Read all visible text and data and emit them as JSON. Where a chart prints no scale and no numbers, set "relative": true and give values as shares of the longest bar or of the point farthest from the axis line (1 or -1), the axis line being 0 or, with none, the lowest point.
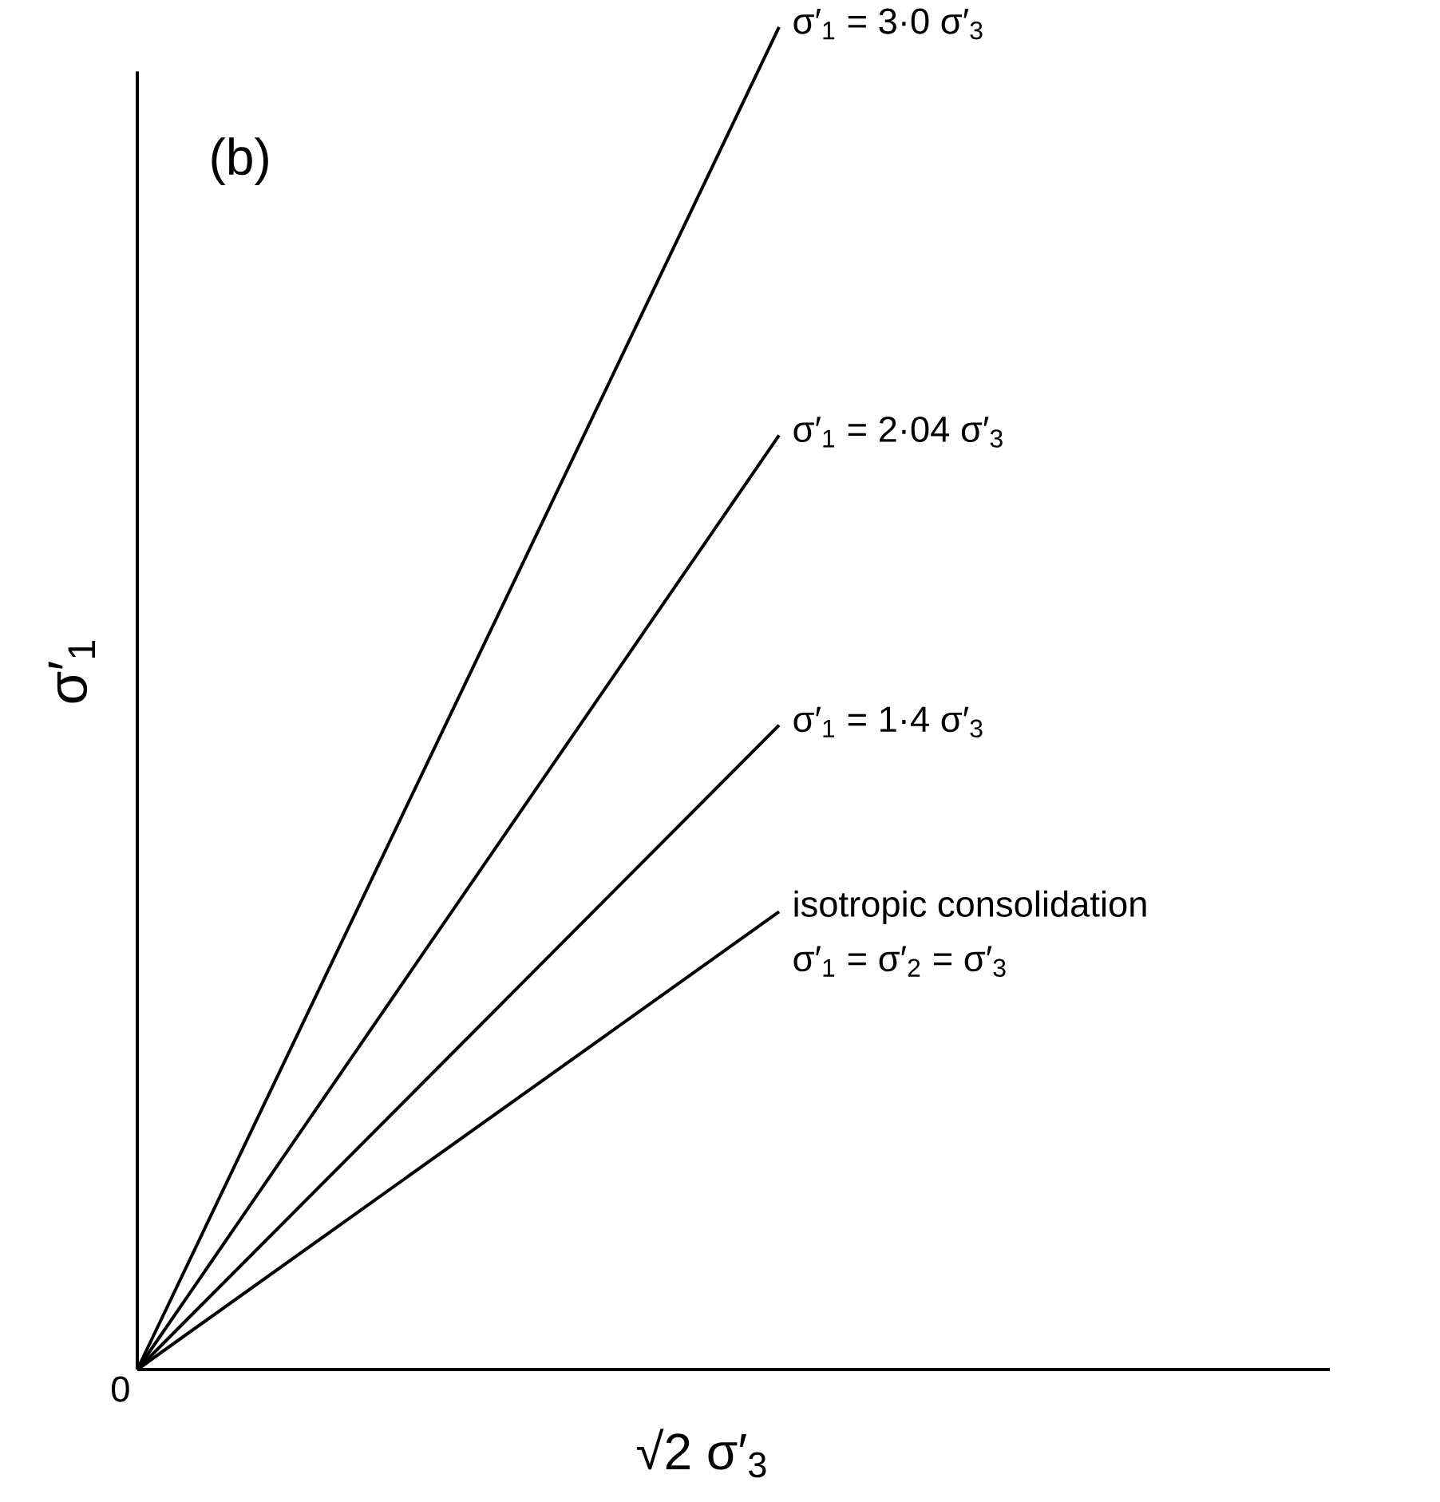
{
  "chart_data": {
    "type": "line",
    "relative": true,
    "xlabel": "√2  σ′$_{3}$",
    "ylabel": "σ′$_{1}$",
    "categories": [
      null,
      null
    ],
    "annotations": [
      "(b)",
      "0",
      "σ′$_{1}$ = σ′$_{2}$ = σ′$_{3}$"
    ],
    "series": [
      {
        "name": "σ′$_{1}$ = 3·0 σ′$_{3}$",
        "color": "#000000",
        "values": [
          0,
          1
        ]
      },
      {
        "name": "σ′$_{1}$ = 2·04 σ′$_{3}$",
        "color": "#000000",
        "values": [
          0,
          0.696
        ]
      },
      {
        "name": "σ′$_{1}$ = 1·4 σ′$_{3}$",
        "color": "#000000",
        "values": [
          0,
          0.48
        ]
      },
      {
        "name": "isotropic consolidation",
        "color": "#000000",
        "values": [
          0,
          0.341
        ]
      }
    ],
    "marker": "none",
    "line_style": "solid",
    "legend": false
  }
}
